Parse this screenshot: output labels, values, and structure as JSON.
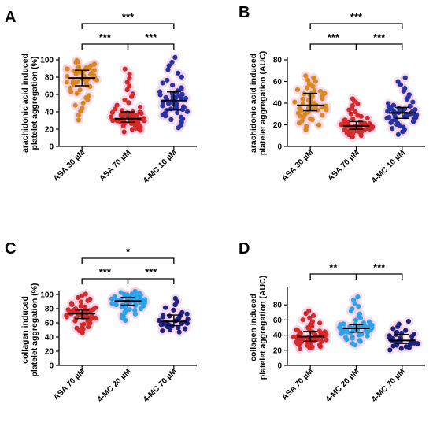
{
  "chart_data": [
    {
      "type": "scatter",
      "panel_label": "A",
      "ylabel": [
        "arachidonic acid induced",
        "platelet aggregation (%)"
      ],
      "ylim": [
        0,
        100
      ],
      "yticks": [
        0,
        20,
        40,
        60,
        80,
        100
      ],
      "categories": [
        "ASA 30 µM",
        "ASA 70 µM",
        "4-MC 10 µM"
      ],
      "colors": [
        "#d98a1e",
        "#d42a2a",
        "#2433a6"
      ],
      "halo": "#f3c3df",
      "series": [
        {
          "n": 55,
          "median": 79,
          "q1": 70,
          "q3": 88,
          "min": 24,
          "max": 100
        },
        {
          "n": 60,
          "median": 32,
          "q1": 28,
          "q3": 40,
          "min": 15,
          "max": 92
        },
        {
          "n": 52,
          "median": 53,
          "q1": 42,
          "q3": 63,
          "min": 18,
          "max": 105
        }
      ],
      "comparisons": [
        {
          "from": 0,
          "to": 1,
          "label": "***",
          "level": 1
        },
        {
          "from": 1,
          "to": 2,
          "label": "***",
          "level": 1
        },
        {
          "from": 0,
          "to": 2,
          "label": "***",
          "level": 2
        }
      ]
    },
    {
      "type": "scatter",
      "panel_label": "B",
      "ylabel": [
        "arachidonic acid induced",
        "platelet aggregation (AUC)"
      ],
      "ylim": [
        0,
        80
      ],
      "yticks": [
        0,
        20,
        40,
        60,
        80
      ],
      "categories": [
        "ASA 30 µM",
        "ASA 70 µM",
        "4-MC 10 µM"
      ],
      "colors": [
        "#d98a1e",
        "#d42a2a",
        "#2433a6"
      ],
      "halo": "#f3c3df",
      "series": [
        {
          "n": 55,
          "median": 38,
          "q1": 33,
          "q3": 49,
          "min": 13,
          "max": 66
        },
        {
          "n": 60,
          "median": 19,
          "q1": 16,
          "q3": 23,
          "min": 8,
          "max": 45
        },
        {
          "n": 52,
          "median": 31,
          "q1": 26,
          "q3": 36,
          "min": 9,
          "max": 65
        }
      ],
      "comparisons": [
        {
          "from": 0,
          "to": 1,
          "label": "***",
          "level": 1
        },
        {
          "from": 1,
          "to": 2,
          "label": "***",
          "level": 1
        },
        {
          "from": 0,
          "to": 2,
          "label": "***",
          "level": 2
        }
      ]
    },
    {
      "type": "scatter",
      "panel_label": "C",
      "ylabel": [
        "collagen induced",
        "platelet aggregation (%)"
      ],
      "ylim": [
        0,
        100
      ],
      "yticks": [
        0,
        20,
        40,
        60,
        80,
        100
      ],
      "categories": [
        "ASA 70 µM",
        "4-MC 20 µM",
        "4-MC 70 µM"
      ],
      "colors": [
        "#d42a2a",
        "#2aa3ea",
        "#1a237e"
      ],
      "halo": "#f3c3df",
      "series": [
        {
          "n": 58,
          "median": 73,
          "q1": 66,
          "q3": 78,
          "min": 43,
          "max": 102
        },
        {
          "n": 55,
          "median": 91,
          "q1": 85,
          "q3": 96,
          "min": 60,
          "max": 105
        },
        {
          "n": 32,
          "median": 62,
          "q1": 56,
          "q3": 71,
          "min": 45,
          "max": 97
        }
      ],
      "comparisons": [
        {
          "from": 0,
          "to": 1,
          "label": "***",
          "level": 1
        },
        {
          "from": 1,
          "to": 2,
          "label": "***",
          "level": 1
        },
        {
          "from": 0,
          "to": 2,
          "label": "*",
          "level": 2
        }
      ]
    },
    {
      "type": "scatter",
      "panel_label": "D",
      "ylabel": [
        "collagen induced",
        "platelet aggregation (AUC)"
      ],
      "ylim": [
        0,
        100
      ],
      "yticks": [
        0,
        20,
        40,
        60,
        80
      ],
      "categories": [
        "ASA 70 µM",
        "4-MC 20 µM",
        "4-MC 70 µM"
      ],
      "colors": [
        "#d42a2a",
        "#2aa3ea",
        "#1a237e"
      ],
      "halo": "#f3c3df",
      "series": [
        {
          "n": 58,
          "median": 38,
          "q1": 32,
          "q3": 45,
          "min": 20,
          "max": 73
        },
        {
          "n": 55,
          "median": 49,
          "q1": 44,
          "q3": 54,
          "min": 24,
          "max": 93
        },
        {
          "n": 32,
          "median": 33,
          "q1": 29,
          "q3": 41,
          "min": 18,
          "max": 60
        }
      ],
      "comparisons": [
        {
          "from": 0,
          "to": 1,
          "label": "**",
          "level": 1
        },
        {
          "from": 1,
          "to": 2,
          "label": "***",
          "level": 1
        }
      ]
    }
  ]
}
